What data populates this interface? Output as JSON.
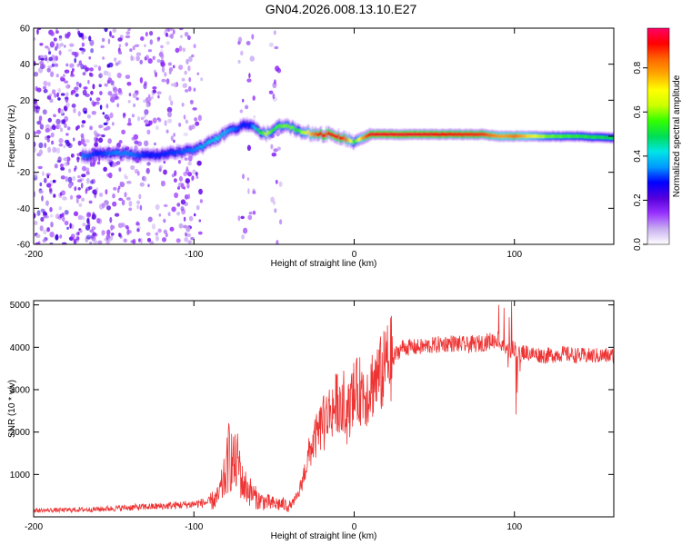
{
  "title": "GN04.2026.008.13.10.E27",
  "chart_data": [
    {
      "type": "heatmap",
      "xlabel": "Height of straight line (km)",
      "ylabel": "Frequency (Hz)",
      "xlim": [
        -200,
        162
      ],
      "ylim": [
        -60,
        60
      ],
      "xticks": [
        -200,
        -100,
        0,
        100
      ],
      "yticks": [
        -60,
        -40,
        -20,
        0,
        20,
        40,
        60
      ],
      "grid": false,
      "colorbar": {
        "label": "Normalized spectral amplitude",
        "range": [
          0,
          0.98
        ],
        "ticks": [
          "0.0",
          "0.2",
          "0.4",
          "0.6",
          "0.8"
        ],
        "colors": [
          "#ffffff",
          "#c8b0f0",
          "#9933ff",
          "#5500dd",
          "#0000ff",
          "#0099ff",
          "#00e5e5",
          "#00dd55",
          "#33ff00",
          "#ccff00",
          "#ffff00",
          "#ffaa00",
          "#ff6600",
          "#ff0000",
          "#ff0066"
        ]
      },
      "ridge": {
        "x": [
          -170,
          -160,
          -150,
          -140,
          -130,
          -120,
          -110,
          -100,
          -95,
          -90,
          -85,
          -80,
          -75,
          -70,
          -65,
          -60,
          -55,
          -50,
          -45,
          -40,
          -35,
          -30,
          -25,
          -20,
          -15,
          -10,
          -5,
          0,
          5,
          10,
          20,
          40,
          60,
          80,
          90,
          95,
          100,
          120,
          140,
          162
        ],
        "y": [
          -11,
          -10,
          -9,
          -10,
          -11,
          -10,
          -9,
          -8,
          -6,
          -3,
          -1,
          2,
          4,
          6,
          6,
          3,
          1,
          4,
          6,
          5,
          3,
          2,
          1,
          1,
          1,
          0,
          -2,
          -3,
          -1,
          1,
          1,
          1,
          1,
          1,
          0,
          0,
          0,
          0,
          0,
          -1
        ],
        "amplitude": [
          0.35,
          0.3,
          0.35,
          0.35,
          0.3,
          0.3,
          0.32,
          0.35,
          0.38,
          0.4,
          0.42,
          0.38,
          0.34,
          0.3,
          0.3,
          0.5,
          0.65,
          0.55,
          0.6,
          0.6,
          0.55,
          0.7,
          0.85,
          0.95,
          0.95,
          0.95,
          0.85,
          0.55,
          0.8,
          0.95,
          0.95,
          0.95,
          0.92,
          0.9,
          0.8,
          0.8,
          0.85,
          0.6,
          0.55,
          0.5
        ]
      },
      "noise_bands_x": [
        [
          -200,
          -95
        ],
        [
          -72,
          -62
        ],
        [
          -52,
          -45
        ]
      ]
    },
    {
      "type": "line",
      "xlabel": "Height of straight line (km)",
      "ylabel": "SNR (10 * v/v)",
      "xlim": [
        -200,
        162
      ],
      "ylim": [
        0,
        5100
      ],
      "xticks": [
        -200,
        -100,
        0,
        100
      ],
      "yticks": [
        1000,
        2000,
        3000,
        4000,
        5000
      ],
      "grid": false,
      "series": [
        {
          "name": "SNR",
          "color": "#ee3333",
          "x": [
            -200,
            -180,
            -160,
            -140,
            -120,
            -100,
            -90,
            -85,
            -80,
            -78,
            -75,
            -72,
            -70,
            -65,
            -60,
            -55,
            -50,
            -45,
            -40,
            -35,
            -32,
            -30,
            -28,
            -25,
            -22,
            -20,
            -18,
            -15,
            -12,
            -10,
            -8,
            -5,
            -2,
            0,
            5,
            8,
            10,
            12,
            15,
            18,
            20,
            25,
            30,
            40,
            50,
            60,
            70,
            80,
            85,
            90,
            92,
            95,
            98,
            100,
            102,
            105,
            110,
            120,
            130,
            140,
            150,
            162
          ],
          "y": [
            150,
            160,
            180,
            220,
            250,
            300,
            350,
            450,
            1000,
            1500,
            1200,
            1300,
            800,
            600,
            400,
            350,
            300,
            300,
            250,
            500,
            900,
            1200,
            1500,
            1800,
            2000,
            2200,
            2300,
            2500,
            2600,
            2800,
            2500,
            2300,
            2700,
            2900,
            3000,
            2900,
            3100,
            3200,
            3300,
            3400,
            3600,
            3800,
            4000,
            4000,
            4050,
            4100,
            4050,
            4100,
            4150,
            4200,
            4000,
            3900,
            3950,
            4000,
            3800,
            3900,
            3850,
            3800,
            3850,
            3800,
            3800,
            3800
          ]
        }
      ]
    }
  ]
}
